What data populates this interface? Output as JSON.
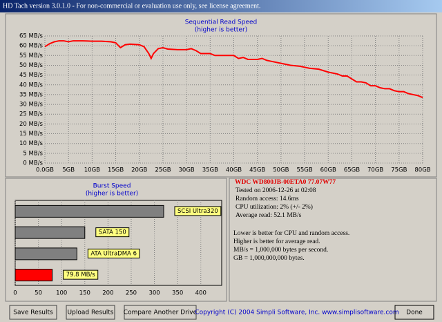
{
  "window": {
    "title": "HD Tach version 3.0.1.0  - For non-commercial or evaluation use only, see license agreement."
  },
  "chart_data": [
    {
      "type": "line",
      "title": "Sequential Read Speed",
      "subtitle": "(higher is better)",
      "color": "#ff0000",
      "grid": true,
      "x": [
        0,
        1,
        2,
        3,
        4,
        5,
        6,
        8,
        10,
        12,
        14,
        15,
        16,
        17,
        18,
        20,
        21,
        22,
        22.5,
        23,
        24,
        25,
        26,
        28,
        30,
        31,
        32,
        33,
        35,
        36,
        40,
        41,
        42,
        43,
        45,
        46,
        47,
        48,
        50,
        52,
        54,
        55,
        56,
        58,
        60,
        62,
        63,
        64,
        65,
        66,
        67,
        68,
        69,
        70,
        71,
        72,
        73,
        74,
        75,
        76,
        77,
        78,
        79,
        80
      ],
      "values": [
        59.5,
        61,
        62,
        62.5,
        62.5,
        62,
        62.5,
        62.5,
        62.3,
        62.3,
        62,
        61.5,
        59,
        60.5,
        60.8,
        60.5,
        59.5,
        56,
        53.5,
        56,
        58.5,
        59,
        58.3,
        58,
        58,
        58.5,
        57.5,
        56,
        56,
        55,
        55,
        53.5,
        54,
        53,
        53,
        53.5,
        52.5,
        52,
        51,
        50,
        49.5,
        49,
        48.5,
        48,
        46.5,
        45.5,
        44.5,
        44.5,
        43,
        41.5,
        41.5,
        41,
        39.5,
        39.5,
        38.5,
        38,
        38,
        37,
        36.5,
        36.5,
        35.5,
        35,
        34.5,
        33.5
      ],
      "xlim": [
        0,
        80
      ],
      "ylim": [
        0,
        65
      ],
      "xticks": [
        {
          "value": 0,
          "label": "0.0GB"
        },
        {
          "value": 5,
          "label": "5GB"
        },
        {
          "value": 10,
          "label": "10GB"
        },
        {
          "value": 15,
          "label": "15GB"
        },
        {
          "value": 20,
          "label": "20GB"
        },
        {
          "value": 25,
          "label": "25GB"
        },
        {
          "value": 30,
          "label": "30GB"
        },
        {
          "value": 35,
          "label": "35GB"
        },
        {
          "value": 40,
          "label": "40GB"
        },
        {
          "value": 45,
          "label": "45GB"
        },
        {
          "value": 50,
          "label": "50GB"
        },
        {
          "value": 55,
          "label": "55GB"
        },
        {
          "value": 60,
          "label": "60GB"
        },
        {
          "value": 65,
          "label": "65GB"
        },
        {
          "value": 70,
          "label": "70GB"
        },
        {
          "value": 75,
          "label": "75GB"
        },
        {
          "value": 80,
          "label": "80GB"
        }
      ],
      "yticks": [
        {
          "value": 0,
          "label": "0 MB/s"
        },
        {
          "value": 5,
          "label": "5 MB/s"
        },
        {
          "value": 10,
          "label": "10 MB/s"
        },
        {
          "value": 15,
          "label": "15 MB/s"
        },
        {
          "value": 20,
          "label": "20 MB/s"
        },
        {
          "value": 25,
          "label": "25 MB/s"
        },
        {
          "value": 30,
          "label": "30 MB/s"
        },
        {
          "value": 35,
          "label": "35 MB/s"
        },
        {
          "value": 40,
          "label": "40 MB/s"
        },
        {
          "value": 45,
          "label": "45 MB/s"
        },
        {
          "value": 50,
          "label": "50 MB/s"
        },
        {
          "value": 55,
          "label": "55 MB/s"
        },
        {
          "value": 60,
          "label": "60 MB/s"
        },
        {
          "value": 65,
          "label": "65 MB/s"
        }
      ]
    },
    {
      "type": "bar",
      "orientation": "horizontal",
      "title": "Burst Speed",
      "subtitle": "(higher is better)",
      "grid": true,
      "categories": [
        "SCSI Ultra320",
        "SATA 150",
        "ATA UltraDMA 6",
        null
      ],
      "values": [
        320,
        150,
        133,
        79.8
      ],
      "value_labels": [
        null,
        null,
        null,
        "79.8 MB/s"
      ],
      "colors": [
        "#808080",
        "#808080",
        "#808080",
        "#ff0000"
      ],
      "xlim": [
        0,
        445
      ],
      "xticks": [
        0,
        50,
        100,
        150,
        200,
        250,
        300,
        350,
        400
      ]
    }
  ],
  "info": {
    "drive": "WDC WD800JB-00ETA0 77.07W77",
    "stats": [
      "Tested on 2006-12-26 at 02:08",
      "Random access: 14.6ms",
      "CPU utilization: 2% (+/- 2%)",
      "Average read: 52.1 MB/s"
    ],
    "notes": [
      "Lower is better for CPU and random access.",
      "Higher is better for average read.",
      "MB/s = 1,000,000 bytes per second.",
      "GB = 1,000,000,000 bytes."
    ]
  },
  "buttons": [
    "Save Results",
    "Upload Results",
    "Compare Another Drive",
    "Done"
  ],
  "footer": "Copyright (C) 2004 Simpli Software, Inc. www.simplisoftware.com"
}
